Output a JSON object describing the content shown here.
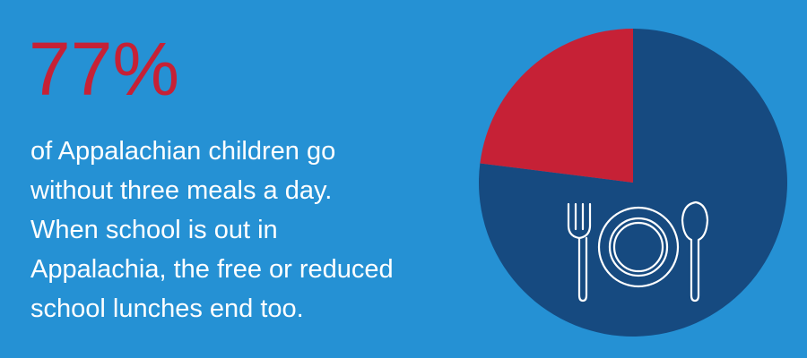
{
  "chart_data": {
    "type": "pie",
    "values": [
      77,
      23
    ],
    "value_labels": [
      "77%",
      null
    ],
    "colors": [
      "#164a80",
      "#c62136"
    ],
    "text": [
      "of Appalachian children go",
      "without three meals a day.",
      "When school is out in",
      "Appalachia, the free or reduced",
      "school lunches end too."
    ]
  }
}
